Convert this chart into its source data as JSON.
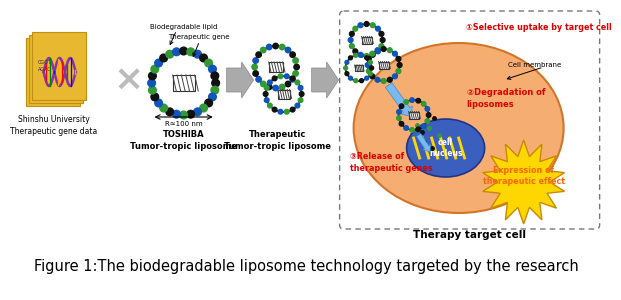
{
  "figure_caption": "Figure 1:The biodegradable liposome technology targeted by the research",
  "caption_fontsize": 10.5,
  "bg_color": "#ffffff",
  "labels": {
    "biodegradable_lipid": "Biodegradable lipid",
    "therapeutic_gene": "Therapeutic gene",
    "size": "R≈100 nm",
    "shinshu": "Shinshu University\nTherapeutic gene data",
    "toshiba": "TOSHIBA\nTumor-tropic liposome",
    "therapeutic": "Therapeutic\nTumor-tropic liposome",
    "selective": "①Selective uptake by target cell",
    "cell_membrane": "Cell membrane",
    "degradation": "②Degradation of\nliposomes",
    "release": "③Release of\ntherapeutic genes",
    "cell_nucleus": "cell\nnucleus",
    "expression": "Expression of\ntherapeutic effect",
    "therapy_target": "Therapy target cell"
  },
  "colors": {
    "orange_cell": "#F5A96A",
    "blue_nucleus": "#3B5FBF",
    "red_text": "#DD0000",
    "yellow_burst": "#FFD700",
    "orange_burst_text": "#FF6600",
    "arrow_gray": "#999999",
    "dashed_border": "#777777",
    "dot_black": "#111111",
    "dot_green": "#339933",
    "dot_blue": "#1155BB",
    "gene_purple": "#8833AA",
    "gold_papers": "#E8B830",
    "light_blue_arrow": "#77BBEE",
    "nucleus_gene": "#FFD700"
  }
}
